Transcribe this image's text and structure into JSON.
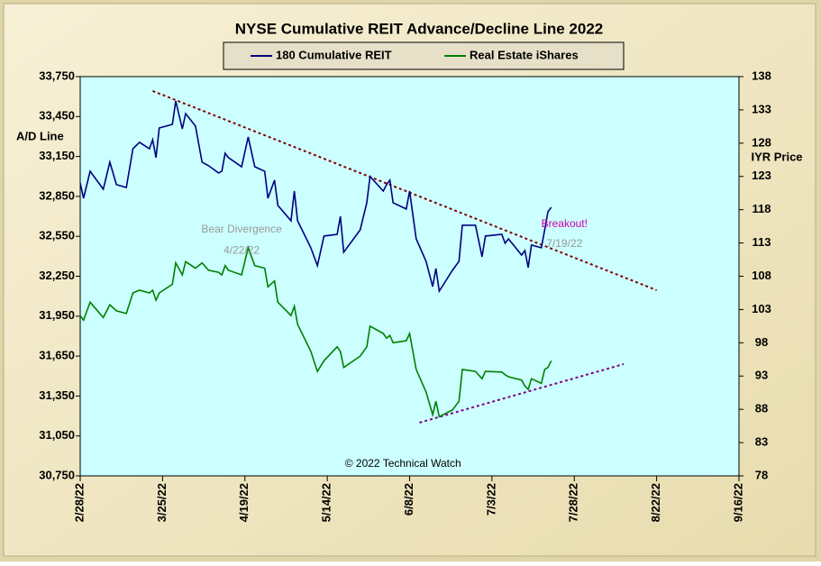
{
  "chart_data": {
    "type": "line",
    "title": "NYSE Cumulative  REIT Advance/Decline  Line 2022",
    "ylabel": "A/D Line",
    "y2label": "IYR Price",
    "legend": "top",
    "grid": false,
    "x": [
      "2022-02-28",
      "2022-03-01",
      "2022-03-03",
      "2022-03-07",
      "2022-03-09",
      "2022-03-11",
      "2022-03-14",
      "2022-03-16",
      "2022-03-18",
      "2022-03-21",
      "2022-03-22",
      "2022-03-23",
      "2022-03-24",
      "2022-03-28",
      "2022-03-29",
      "2022-03-31",
      "2022-04-01",
      "2022-04-04",
      "2022-04-06",
      "2022-04-08",
      "2022-04-11",
      "2022-04-12",
      "2022-04-13",
      "2022-04-14",
      "2022-04-18",
      "2022-04-20",
      "2022-04-22",
      "2022-04-25",
      "2022-04-26",
      "2022-04-28",
      "2022-04-29",
      "2022-05-03",
      "2022-05-04",
      "2022-05-05",
      "2022-05-09",
      "2022-05-11",
      "2022-05-13",
      "2022-05-17",
      "2022-05-18",
      "2022-05-19",
      "2022-05-24",
      "2022-05-26",
      "2022-05-27",
      "2022-05-31",
      "2022-06-01",
      "2022-06-02",
      "2022-06-03",
      "2022-06-07",
      "2022-06-08",
      "2022-06-10",
      "2022-06-13",
      "2022-06-15",
      "2022-06-16",
      "2022-06-17",
      "2022-06-21",
      "2022-06-23",
      "2022-06-24",
      "2022-06-28",
      "2022-06-30",
      "2022-07-01",
      "2022-07-06",
      "2022-07-07",
      "2022-07-08",
      "2022-07-12",
      "2022-07-13",
      "2022-07-14",
      "2022-07-15",
      "2022-07-18",
      "2022-07-19",
      "2022-07-20",
      "2022-07-21"
    ],
    "series": [
      {
        "name": "180 Cumulative REIT",
        "color": "#000080",
        "axis": "y",
        "values": [
          32951,
          32836,
          33039,
          32904,
          33107,
          32938,
          32917,
          33208,
          33256,
          33208,
          33276,
          33141,
          33364,
          33391,
          33567,
          33357,
          33472,
          33378,
          33107,
          33080,
          33026,
          33039,
          33174,
          33141,
          33073,
          33297,
          33073,
          33039,
          32836,
          32972,
          32782,
          32667,
          32890,
          32667,
          32464,
          32329,
          32552,
          32565,
          32700,
          32430,
          32599,
          32802,
          33000,
          32890,
          32938,
          32972,
          32802,
          32755,
          32890,
          32531,
          32362,
          32172,
          32308,
          32138,
          32294,
          32362,
          32633,
          32633,
          32396,
          32552,
          32565,
          32498,
          32531,
          32409,
          32443,
          32315,
          32484,
          32464,
          32599,
          32735,
          32768
        ]
      },
      {
        "name": "Real Estate iShares",
        "color": "#008000",
        "axis": "y2",
        "values": [
          102.1,
          101.4,
          104.1,
          101.8,
          103.7,
          102.8,
          102.4,
          105.5,
          105.9,
          105.5,
          105.9,
          104.4,
          105.5,
          106.8,
          110.0,
          108.2,
          110.2,
          109.2,
          110.0,
          108.9,
          108.6,
          108.2,
          109.6,
          108.9,
          108.2,
          112.3,
          109.6,
          109.2,
          106.4,
          107.3,
          104.1,
          102.1,
          103.5,
          100.8,
          96.7,
          93.7,
          95.3,
          97.4,
          96.7,
          94.3,
          96.0,
          97.4,
          100.5,
          99.4,
          98.7,
          99.1,
          98.0,
          98.3,
          99.4,
          94.0,
          90.6,
          87.2,
          89.2,
          86.9,
          87.9,
          89.2,
          94.0,
          93.7,
          92.6,
          93.7,
          93.6,
          93.2,
          92.9,
          92.4,
          91.5,
          91.0,
          92.6,
          91.9,
          94.0,
          94.3,
          95.3
        ]
      }
    ],
    "trendlines": [
      {
        "color": "#800000",
        "axis": "y",
        "x": [
          "2022-03-22",
          "2022-08-22"
        ],
        "values": [
          33642,
          32145
        ]
      },
      {
        "color": "#800080",
        "axis": "y2",
        "x": [
          "2022-06-11",
          "2022-08-12"
        ],
        "values": [
          86.0,
          94.8
        ]
      }
    ],
    "annotations": [
      {
        "text": "Bear Divergence",
        "x": "2022-04-18",
        "y": 32600,
        "color": "#999999"
      },
      {
        "text": "4/22/22",
        "x": "2022-04-18",
        "y": 32440,
        "color": "#999999"
      },
      {
        "text": "Breakout!",
        "x": "2022-07-25",
        "y": 32640,
        "color": "#cc00aa"
      },
      {
        "text": "7/19/22",
        "x": "2022-07-25",
        "y": 32490,
        "color": "#999999"
      },
      {
        "text": "© 2022 Technical  Watch",
        "x": "2022-06-06",
        "y": 30840,
        "color": "#000000"
      }
    ],
    "xlim": [
      "2022-02-28",
      "2022-09-16"
    ],
    "xticks": [
      {
        "value": "2022-02-28",
        "label": "2/28/22"
      },
      {
        "value": "2022-03-25",
        "label": "3/25/22"
      },
      {
        "value": "2022-04-19",
        "label": "4/19/22"
      },
      {
        "value": "2022-05-14",
        "label": "5/14/22"
      },
      {
        "value": "2022-06-08",
        "label": "6/8/22"
      },
      {
        "value": "2022-07-03",
        "label": "7/3/22"
      },
      {
        "value": "2022-07-28",
        "label": "7/28/22"
      },
      {
        "value": "2022-08-22",
        "label": "8/22/22"
      },
      {
        "value": "2022-09-16",
        "label": "9/16/22"
      }
    ],
    "ylim": [
      30750,
      33750
    ],
    "yticks": [
      {
        "value": 30750,
        "label": "30,750"
      },
      {
        "value": 31050,
        "label": "31,050"
      },
      {
        "value": 31350,
        "label": "31,350"
      },
      {
        "value": 31650,
        "label": "31,650"
      },
      {
        "value": 31950,
        "label": "31,950"
      },
      {
        "value": 32250,
        "label": "32,250"
      },
      {
        "value": 32550,
        "label": "32,550"
      },
      {
        "value": 32850,
        "label": "32,850"
      },
      {
        "value": 33150,
        "label": "33,150"
      },
      {
        "value": 33450,
        "label": "33,450"
      },
      {
        "value": 33750,
        "label": "33,750"
      }
    ],
    "y2lim": [
      78,
      138
    ],
    "y2ticks": [
      78,
      83,
      88,
      93,
      98,
      103,
      108,
      113,
      118,
      123,
      128,
      133,
      138
    ]
  }
}
